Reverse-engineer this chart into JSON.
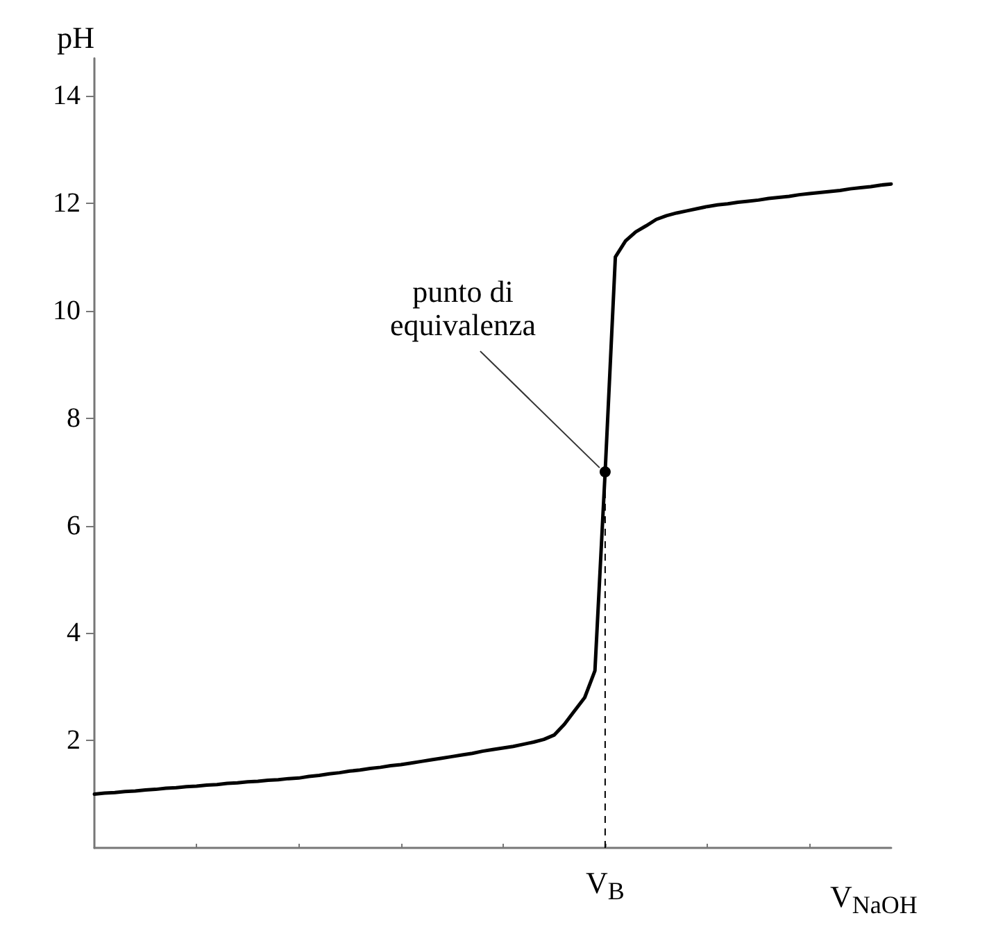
{
  "chart_data": {
    "type": "line",
    "xlabel": "V$_{NaOH}$",
    "ylabel": "pH",
    "categories": [
      null,
      null,
      null,
      null,
      null,
      null,
      null,
      null,
      null,
      null,
      null,
      null,
      null,
      null,
      null,
      null,
      null,
      null,
      null,
      null,
      null,
      null,
      null,
      null,
      null,
      null,
      null,
      null,
      null,
      null,
      null,
      null,
      null,
      null,
      null,
      null,
      null,
      null,
      null,
      null,
      null,
      null,
      null,
      null,
      null,
      null,
      null,
      null,
      null,
      null,
      "V$_{B}$",
      null,
      null,
      null,
      null,
      null,
      null,
      null,
      null,
      null,
      null,
      null,
      null,
      null,
      null,
      null,
      null,
      null,
      null,
      null,
      null,
      null,
      null,
      null,
      null,
      null,
      null,
      null,
      null
    ],
    "series": [
      {
        "type": "line",
        "color": "#000000",
        "values": [
          1.0,
          1.02,
          1.03,
          1.05,
          1.06,
          1.08,
          1.09,
          1.11,
          1.12,
          1.14,
          1.15,
          1.17,
          1.18,
          1.2,
          1.21,
          1.23,
          1.24,
          1.26,
          1.27,
          1.29,
          1.3,
          1.33,
          1.35,
          1.38,
          1.4,
          1.43,
          1.45,
          1.48,
          1.5,
          1.53,
          1.55,
          1.58,
          1.61,
          1.64,
          1.67,
          1.7,
          1.73,
          1.76,
          1.8,
          1.83,
          1.86,
          1.89,
          1.93,
          1.97,
          2.02,
          2.1,
          2.3,
          2.55,
          2.8,
          3.3,
          7,
          11.0,
          11.3,
          11.47,
          11.58,
          11.7,
          11.77,
          11.82,
          11.86,
          11.9,
          11.94,
          11.97,
          11.99,
          12.02,
          12.04,
          12.06,
          12.09,
          12.11,
          12.13,
          12.16,
          12.18,
          12.2,
          12.22,
          12.24,
          12.27,
          12.29,
          12.31,
          12.34,
          12.36
        ]
      }
    ],
    "ylim": [
      0,
      14.7
    ],
    "yticks": [
      2,
      4,
      6,
      8,
      10,
      12,
      14
    ],
    "ref_lines": [
      {
        "axis": "x",
        "value": "V$_{B}$",
        "line_style": "dashed",
        "color": "#000000"
      }
    ],
    "annotations": [
      {
        "text": "punto di\nequivalenza",
        "x": "V$_{B}$",
        "y": 7
      }
    ],
    "grid": false
  }
}
